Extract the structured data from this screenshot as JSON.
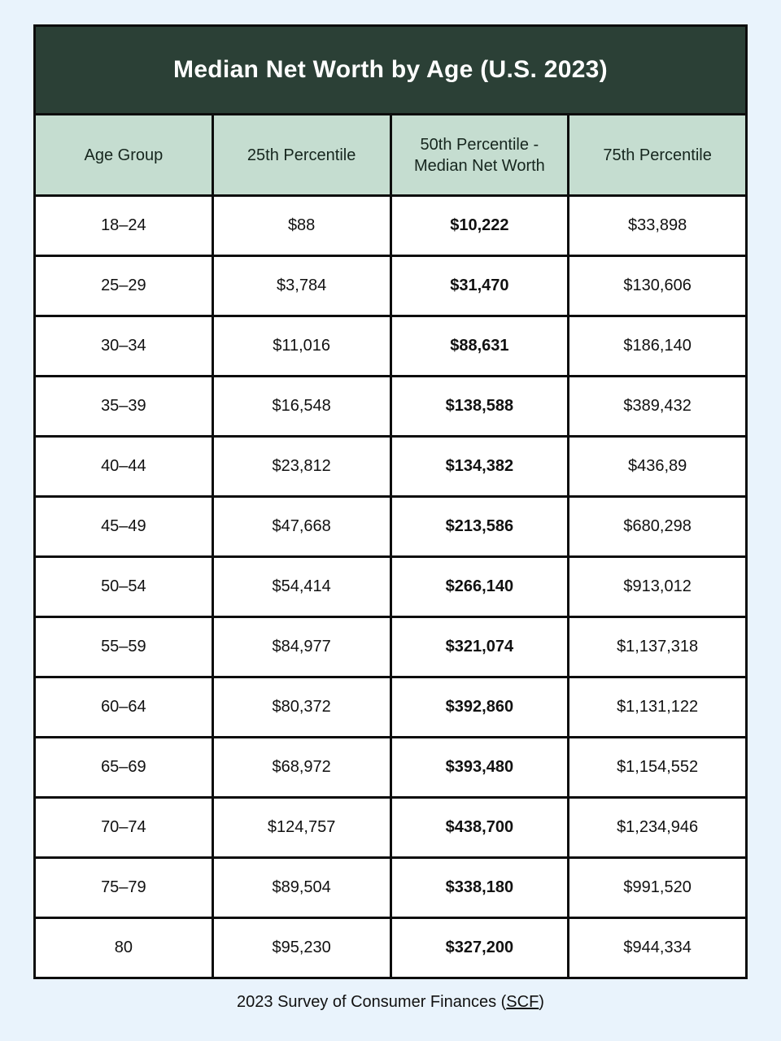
{
  "title": "Median Net Worth by Age (U.S. 2023)",
  "colors": {
    "page_background": "#e9f3fc",
    "title_band_background": "#2b4036",
    "title_text": "#ffffff",
    "column_header_background": "#c5ddd0",
    "column_header_text": "#16261e",
    "grid_border": "#0d0d0d",
    "cell_background": "#ffffff",
    "cell_text": "#111111"
  },
  "chart_data": {
    "type": "table",
    "title": "Median Net Worth by Age (U.S. 2023)",
    "columns": [
      "Age Group",
      "25th Percentile",
      "50th Percentile - Median Net Worth",
      "75th Percentile"
    ],
    "rows": [
      [
        "18–24",
        "$88",
        "$10,222",
        "$33,898"
      ],
      [
        "25–29",
        "$3,784",
        "$31,470",
        "$130,606"
      ],
      [
        "30–34",
        "$11,016",
        "$88,631",
        "$186,140"
      ],
      [
        "35–39",
        "$16,548",
        "$138,588",
        "$389,432"
      ],
      [
        "40–44",
        "$23,812",
        "$134,382",
        "$436,89"
      ],
      [
        "45–49",
        "$47,668",
        "$213,586",
        "$680,298"
      ],
      [
        "50–54",
        "$54,414",
        "$266,140",
        "$913,012"
      ],
      [
        "55–59",
        "$84,977",
        "$321,074",
        "$1,137,318"
      ],
      [
        "60–64",
        "$80,372",
        "$392,860",
        "$1,131,122"
      ],
      [
        "65–69",
        "$68,972",
        "$393,480",
        "$1,154,552"
      ],
      [
        "70–74",
        "$124,757",
        "$438,700",
        "$1,234,946"
      ],
      [
        "75–79",
        "$89,504",
        "$338,180",
        "$991,520"
      ],
      [
        "80",
        "$95,230",
        "$327,200",
        "$944,334"
      ]
    ],
    "bold_column_index": 2,
    "source": "2023 Survey of Consumer Finances (SCF)"
  },
  "footer": {
    "prefix": "2023 Survey of Consumer Finances (",
    "link_label": "SCF",
    "suffix": ")"
  }
}
